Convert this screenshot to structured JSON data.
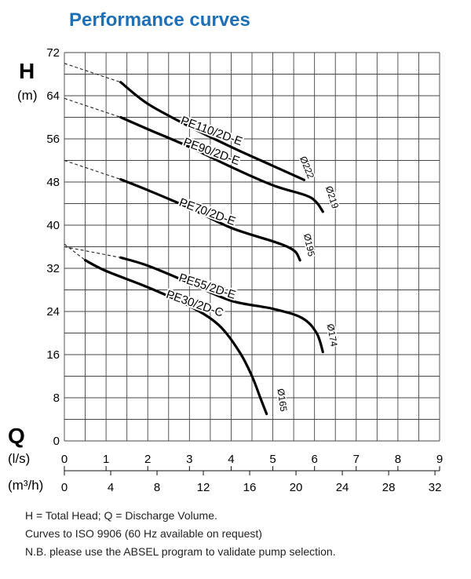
{
  "title": "Performance curves",
  "chart_data": {
    "type": "line",
    "ylabel": "H",
    "yunit": "(m)",
    "xlabel": "Q",
    "xunit_primary": "(l/s)",
    "xunit_secondary": "(m³/h)",
    "xlim": [
      0,
      9
    ],
    "ylim": [
      0,
      72
    ],
    "yticks": [
      "0",
      "8",
      "16",
      "24",
      "32",
      "40",
      "48",
      "56",
      "64",
      "72"
    ],
    "xticks_ls": [
      "0",
      "1",
      "2",
      "3",
      "4",
      "5",
      "6",
      "7",
      "8",
      "9"
    ],
    "xticks_m3h": [
      "0",
      "4",
      "8",
      "12",
      "16",
      "20",
      "24",
      "28",
      "32"
    ],
    "grid": true,
    "series": [
      {
        "name": "PE110/2D-E",
        "impeller": "Ø222",
        "x": [
          1.35,
          2,
          3,
          4,
          5,
          5.75
        ],
        "y": [
          66.5,
          62.5,
          58.3,
          54.5,
          51,
          48.4
        ],
        "extrapolated": {
          "x": [
            0,
            1.35
          ],
          "y": [
            70,
            66.5
          ]
        }
      },
      {
        "name": "PE90/2D-E",
        "impeller": "Ø219",
        "x": [
          1.35,
          2,
          3,
          4,
          5,
          5.8,
          6.05,
          6.2
        ],
        "y": [
          60,
          57.8,
          54.5,
          50.8,
          47.4,
          45.5,
          44.2,
          42.5
        ],
        "extrapolated": {
          "x": [
            0,
            1.35
          ],
          "y": [
            63.5,
            60
          ]
        }
      },
      {
        "name": "PE70/2D-E",
        "impeller": "Ø195",
        "x": [
          1.35,
          2,
          3,
          4,
          5,
          5.35,
          5.55,
          5.65
        ],
        "y": [
          48.5,
          46.5,
          43.2,
          39.5,
          37,
          36,
          35,
          33.5
        ],
        "extrapolated": {
          "x": [
            0,
            1.35
          ],
          "y": [
            52,
            48.5
          ]
        }
      },
      {
        "name": "PE55/2D-E",
        "impeller": "Ø174",
        "x": [
          1.35,
          2,
          3,
          4,
          5,
          5.7,
          6.05,
          6.2
        ],
        "y": [
          34,
          32.5,
          29.3,
          26,
          24.5,
          22.8,
          20,
          16.5
        ],
        "extrapolated": {
          "x": [
            0,
            1.35
          ],
          "y": [
            36,
            34
          ]
        }
      },
      {
        "name": "PE30/2D-C",
        "impeller": "Ø165",
        "x": [
          0.5,
          1,
          2,
          3,
          3.7,
          4.2,
          4.5,
          4.7,
          4.85
        ],
        "y": [
          33.5,
          31.5,
          28.5,
          25,
          21.5,
          16.5,
          12,
          8,
          5
        ],
        "extrapolated": {
          "x": [
            0,
            0.5
          ],
          "y": [
            36.5,
            33.5
          ]
        }
      }
    ],
    "labels": {
      "PE110/2D-E": "PE110/2D-E",
      "PE90/2D-E": "PE90/2D-E",
      "PE70/2D-E": "PE70/2D-E",
      "PE55/2D-E": "PE55/2D-E",
      "PE30/2D-C": "PE30/2D-C"
    }
  },
  "notes": [
    "H = Total Head; Q = Discharge Volume.",
    "Curves to ISO 9906 (60 Hz available on request)",
    "N.B. please use the ABSEL program to validate pump selection."
  ]
}
